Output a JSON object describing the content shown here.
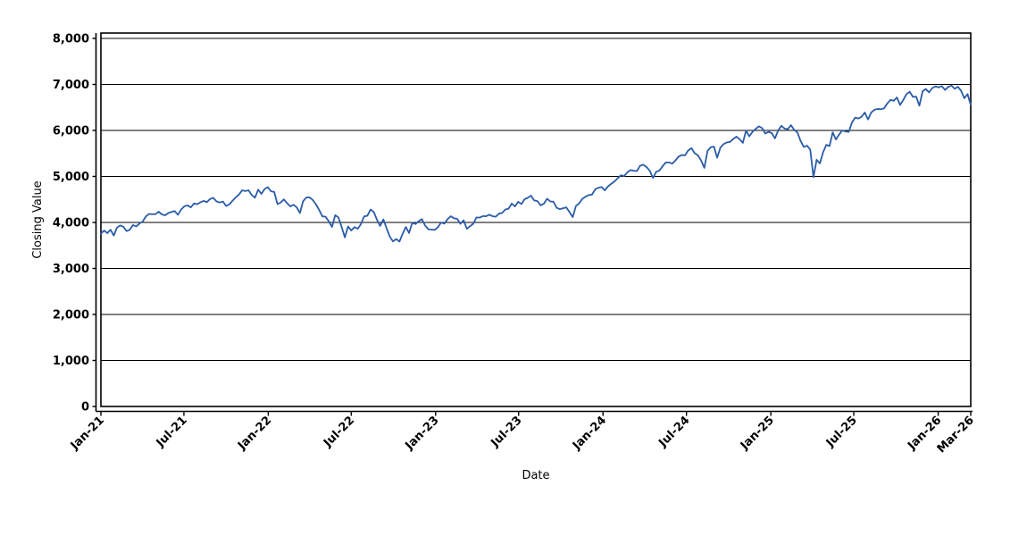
{
  "chart_data": {
    "type": "line",
    "title": "",
    "xlabel": "Date",
    "ylabel": "Closing Value",
    "legend": "none",
    "grid": "horizontal-black",
    "x_start_date": "2021-01-01",
    "point_interval_days": 7,
    "xlim_days": [
      0,
      1897
    ],
    "ylim": [
      0,
      8120
    ],
    "x_tick_labels": [
      "Jan-21",
      "Jul-21",
      "Jan-22",
      "Jul-22",
      "Jan-23",
      "Jul-23",
      "Jan-24",
      "Jul-24",
      "Jan-25",
      "Jul-25",
      "Jan-26",
      "Mar-26"
    ],
    "x_tick_day_offsets": [
      0,
      181,
      365,
      546,
      730,
      911,
      1095,
      1277,
      1461,
      1642,
      1826,
      1897
    ],
    "y_ticks": [
      0,
      1000,
      2000,
      3000,
      4000,
      5000,
      6000,
      7000,
      8000
    ],
    "y_tick_labels": [
      "0",
      "1,000",
      "2,000",
      "3,000",
      "4,000",
      "5,000",
      "6,000",
      "7,000",
      "8,000"
    ],
    "series": [
      {
        "name": "Closing Value",
        "color": "#2A5CA8",
        "values": [
          3756,
          3825,
          3768,
          3841,
          3714,
          3887,
          3935,
          3907,
          3811,
          3842,
          3943,
          3913,
          3975,
          4020,
          4129,
          4185,
          4180,
          4181,
          4233,
          4174,
          4156,
          4204,
          4230,
          4247,
          4166,
          4281,
          4352,
          4370,
          4327,
          4412,
          4395,
          4437,
          4468,
          4442,
          4509,
          4535,
          4459,
          4433,
          4455,
          4357,
          4391,
          4471,
          4545,
          4605,
          4698,
          4683,
          4698,
          4595,
          4538,
          4712,
          4621,
          4726,
          4766,
          4677,
          4663,
          4398,
          4432,
          4501,
          4419,
          4349,
          4385,
          4329,
          4204,
          4463,
          4543,
          4546,
          4488,
          4393,
          4272,
          4132,
          4123,
          4024,
          3901,
          4158,
          4109,
          3901,
          3675,
          3912,
          3825,
          3899,
          3863,
          3962,
          4130,
          4145,
          4280,
          4228,
          4058,
          3924,
          4067,
          3873,
          3693,
          3586,
          3640,
          3583,
          3753,
          3901,
          3771,
          3993,
          3965,
          4026,
          4072,
          3934,
          3852,
          3845,
          3839,
          3895,
          3999,
          3973,
          4071,
          4136,
          4090,
          4079,
          3970,
          4046,
          3862,
          3917,
          3971,
          4109,
          4105,
          4138,
          4134,
          4169,
          4136,
          4124,
          4192,
          4205,
          4282,
          4299,
          4410,
          4348,
          4450,
          4399,
          4505,
          4536,
          4582,
          4478,
          4464,
          4370,
          4406,
          4516,
          4457,
          4450,
          4320,
          4288,
          4309,
          4328,
          4224,
          4117,
          4358,
          4415,
          4514,
          4559,
          4595,
          4604,
          4719,
          4755,
          4770,
          4697,
          4784,
          4840,
          4891,
          4959,
          5027,
          5006,
          5089,
          5137,
          5124,
          5117,
          5234,
          5254,
          5204,
          5123,
          4967,
          5100,
          5128,
          5223,
          5303,
          5305,
          5278,
          5347,
          5432,
          5465,
          5460,
          5567,
          5615,
          5505,
          5459,
          5347,
          5186,
          5554,
          5635,
          5648,
          5408,
          5626,
          5703,
          5738,
          5751,
          5815,
          5865,
          5808,
          5729,
          5996,
          5871,
          5969,
          6032,
          6090,
          6051,
          5931,
          5971,
          5942,
          5827,
          5997,
          6101,
          6041,
          6026,
          6115,
          6013,
          5955,
          5770,
          5639,
          5668,
          5581,
          4983,
          5363,
          5283,
          5525,
          5687,
          5660,
          5958,
          5803,
          5912,
          6000,
          5977,
          5968,
          6173,
          6279,
          6260,
          6297,
          6389,
          6238,
          6389,
          6450,
          6467,
          6460,
          6481,
          6584,
          6664,
          6644,
          6716,
          6553,
          6664,
          6792,
          6840,
          6729,
          6734,
          6538,
          6849,
          6900,
          6828,
          6920,
          6958,
          6935,
          6965,
          6880,
          6945,
          6975,
          6905,
          6950,
          6860,
          6700,
          6790,
          6557
        ]
      }
    ],
    "colors": {
      "axis": "#000000",
      "gridline": "#000000",
      "background": "#ffffff"
    }
  }
}
